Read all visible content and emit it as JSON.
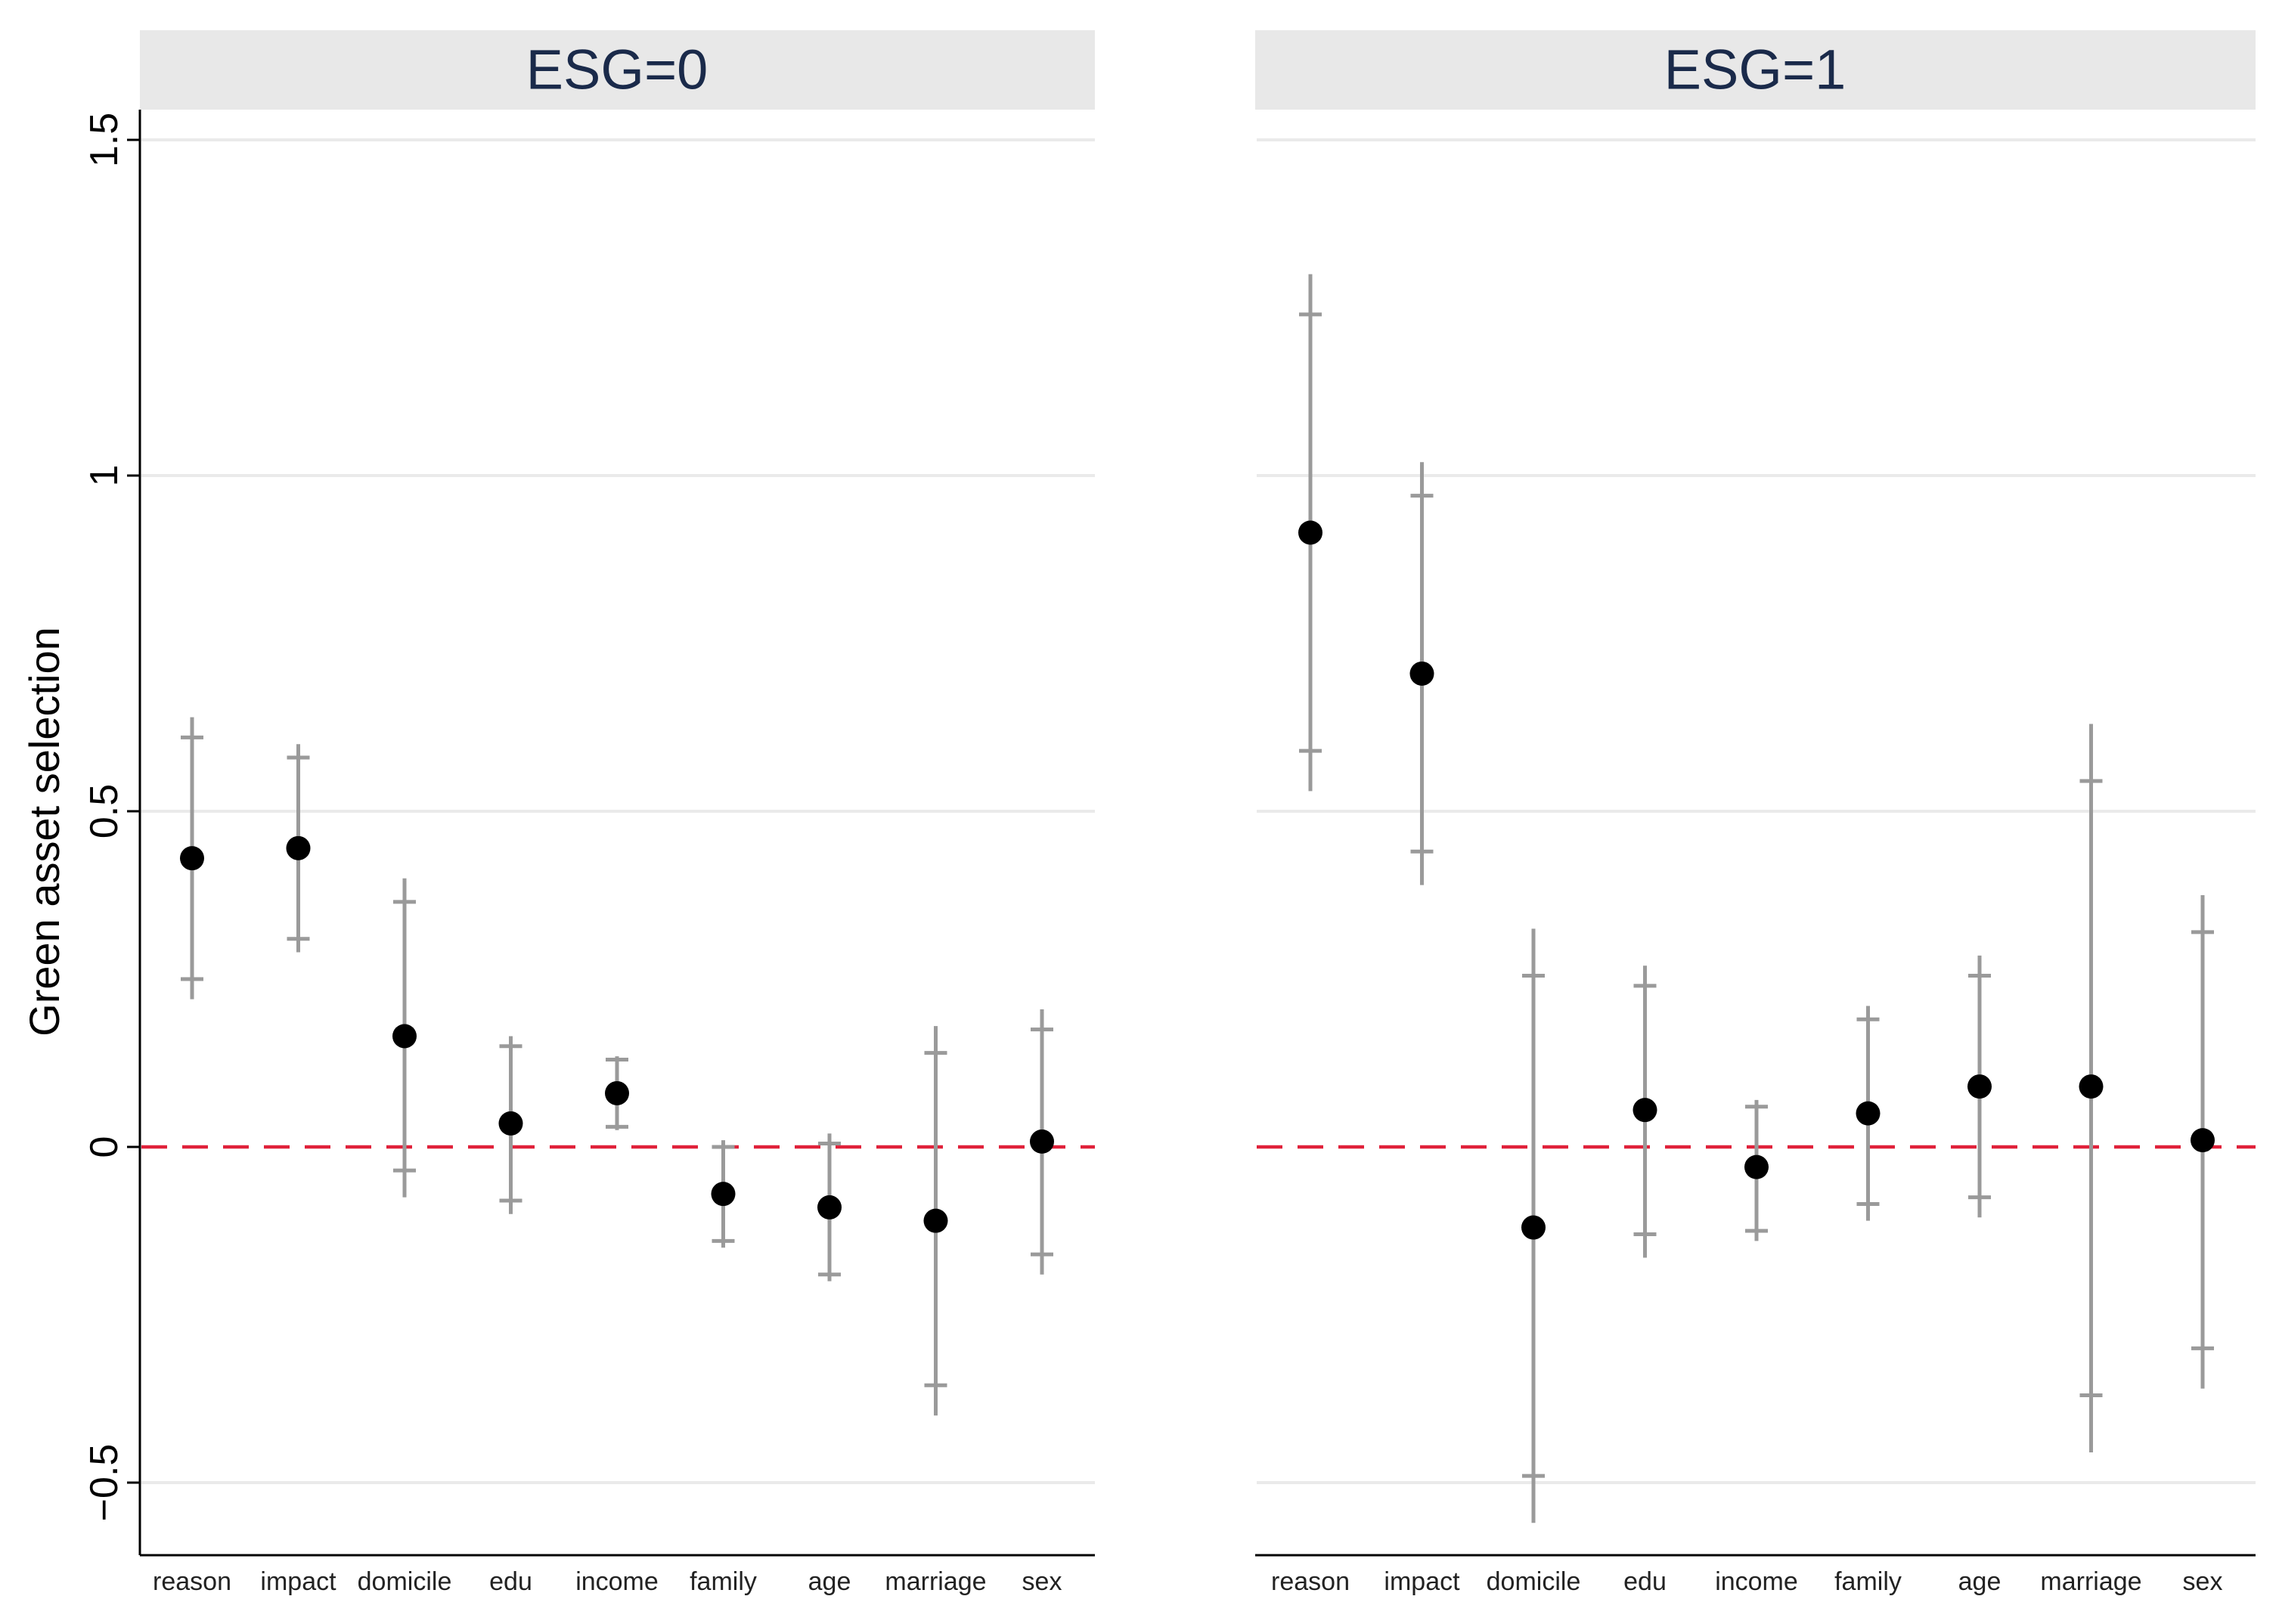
{
  "chart_data": {
    "type": "scatter",
    "subtype": "coefficient-plot-with-confidence-intervals",
    "ylabel": "Green asset selection",
    "xlabel": "",
    "ylim": [
      -0.6,
      1.55
    ],
    "yticks": [
      {
        "value": -0.5,
        "label": "−0.5"
      },
      {
        "value": 0,
        "label": "0"
      },
      {
        "value": 0.5,
        "label": "0.5"
      },
      {
        "value": 1,
        "label": "1"
      },
      {
        "value": 1.5,
        "label": "1.5"
      }
    ],
    "reference_line": {
      "value": 0,
      "style": "dashed",
      "color": "#e0213a"
    },
    "categories": [
      "reason",
      "impact",
      "domicile",
      "edu",
      "income",
      "family",
      "age",
      "marriage",
      "sex"
    ],
    "panels": [
      {
        "title": "ESG=0",
        "series": [
          {
            "label": "reason",
            "estimate": 0.43,
            "ci95": [
              0.22,
              0.64
            ],
            "ci90": [
              0.25,
              0.61
            ]
          },
          {
            "label": "impact",
            "estimate": 0.445,
            "ci95": [
              0.29,
              0.6
            ],
            "ci90": [
              0.31,
              0.58
            ]
          },
          {
            "label": "domicile",
            "estimate": 0.165,
            "ci95": [
              -0.075,
              0.4
            ],
            "ci90": [
              -0.035,
              0.365
            ]
          },
          {
            "label": "edu",
            "estimate": 0.035,
            "ci95": [
              -0.1,
              0.165
            ],
            "ci90": [
              -0.08,
              0.15
            ]
          },
          {
            "label": "income",
            "estimate": 0.08,
            "ci95": [
              0.025,
              0.135
            ],
            "ci90": [
              0.03,
              0.13
            ]
          },
          {
            "label": "family",
            "estimate": -0.07,
            "ci95": [
              -0.15,
              0.01
            ],
            "ci90": [
              -0.14,
              0.0
            ]
          },
          {
            "label": "age",
            "estimate": -0.09,
            "ci95": [
              -0.2,
              0.02
            ],
            "ci90": [
              -0.19,
              0.005
            ]
          },
          {
            "label": "marriage",
            "estimate": -0.11,
            "ci95": [
              -0.4,
              0.18
            ],
            "ci90": [
              -0.355,
              0.14
            ]
          },
          {
            "label": "sex",
            "estimate": 0.008,
            "ci95": [
              -0.19,
              0.205
            ],
            "ci90": [
              -0.16,
              0.175
            ]
          }
        ]
      },
      {
        "title": "ESG=1",
        "series": [
          {
            "label": "reason",
            "estimate": 0.915,
            "ci95": [
              0.53,
              1.3
            ],
            "ci90": [
              0.59,
              1.24
            ]
          },
          {
            "label": "impact",
            "estimate": 0.705,
            "ci95": [
              0.39,
              1.02
            ],
            "ci90": [
              0.44,
              0.97
            ]
          },
          {
            "label": "domicile",
            "estimate": -0.12,
            "ci95": [
              -0.56,
              0.325
            ],
            "ci90": [
              -0.49,
              0.255
            ]
          },
          {
            "label": "edu",
            "estimate": 0.055,
            "ci95": [
              -0.165,
              0.27
            ],
            "ci90": [
              -0.13,
              0.24
            ]
          },
          {
            "label": "income",
            "estimate": -0.03,
            "ci95": [
              -0.14,
              0.07
            ],
            "ci90": [
              -0.125,
              0.06
            ]
          },
          {
            "label": "family",
            "estimate": 0.05,
            "ci95": [
              -0.11,
              0.21
            ],
            "ci90": [
              -0.085,
              0.19
            ]
          },
          {
            "label": "age",
            "estimate": 0.09,
            "ci95": [
              -0.105,
              0.285
            ],
            "ci90": [
              -0.075,
              0.255
            ]
          },
          {
            "label": "marriage",
            "estimate": 0.09,
            "ci95": [
              -0.455,
              0.63
            ],
            "ci90": [
              -0.37,
              0.545
            ]
          },
          {
            "label": "sex",
            "estimate": 0.01,
            "ci95": [
              -0.36,
              0.375
            ],
            "ci90": [
              -0.3,
              0.32
            ]
          }
        ]
      }
    ],
    "grid": true,
    "legend": "none"
  }
}
